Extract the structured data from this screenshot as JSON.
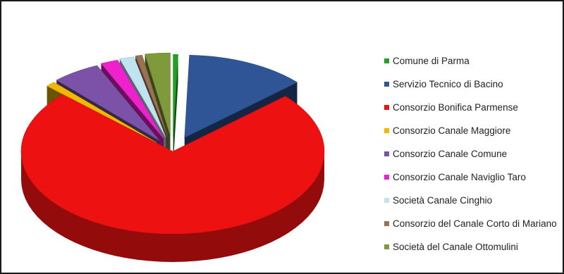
{
  "chart_data": {
    "type": "pie",
    "title": "",
    "style": "3d-exploded",
    "legend_position": "right",
    "series": [
      {
        "label": "Comune di Parma",
        "value": 0.5,
        "color": "#21a321"
      },
      {
        "label": "Servizio Tecnico di Bacino",
        "value": 12.5,
        "color": "#2f5596"
      },
      {
        "label": "Consorzio Bonifica Parmense",
        "value": 72.0,
        "color": "#ee1111"
      },
      {
        "label": "Consorzio Canale Maggiore",
        "value": 1.0,
        "color": "#f2b800"
      },
      {
        "label": "Consorzio Canale Comune",
        "value": 5.0,
        "color": "#7b52a8"
      },
      {
        "label": "Consorzio Canale Naviglio Taro",
        "value": 1.8,
        "color": "#ee22cc"
      },
      {
        "label": "Società Canale Cinghio",
        "value": 1.5,
        "color": "#bfe4ef"
      },
      {
        "label": "Consorzio del Canale Corto di Mariano",
        "value": 0.7,
        "color": "#9a7152"
      },
      {
        "label": "Società del Canale Ottomulini",
        "value": 2.6,
        "color": "#7e9a3a"
      }
    ]
  }
}
